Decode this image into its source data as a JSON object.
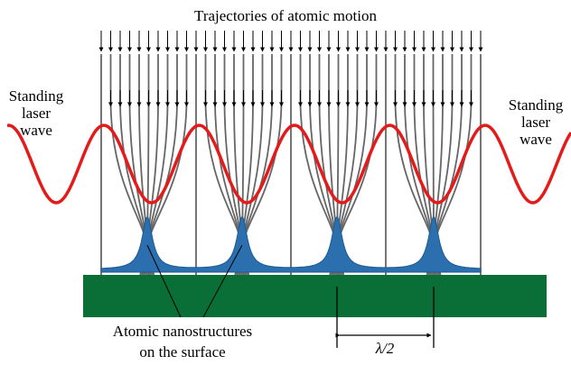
{
  "title": "Trajectories of atomic motion",
  "left_label": [
    "Standing",
    "laser",
    "wave"
  ],
  "right_label": [
    "Standing",
    "laser",
    "wave"
  ],
  "bottom_label": [
    "Atomic nanostructures",
    "on the surface"
  ],
  "period_label": "λ/2"
}
